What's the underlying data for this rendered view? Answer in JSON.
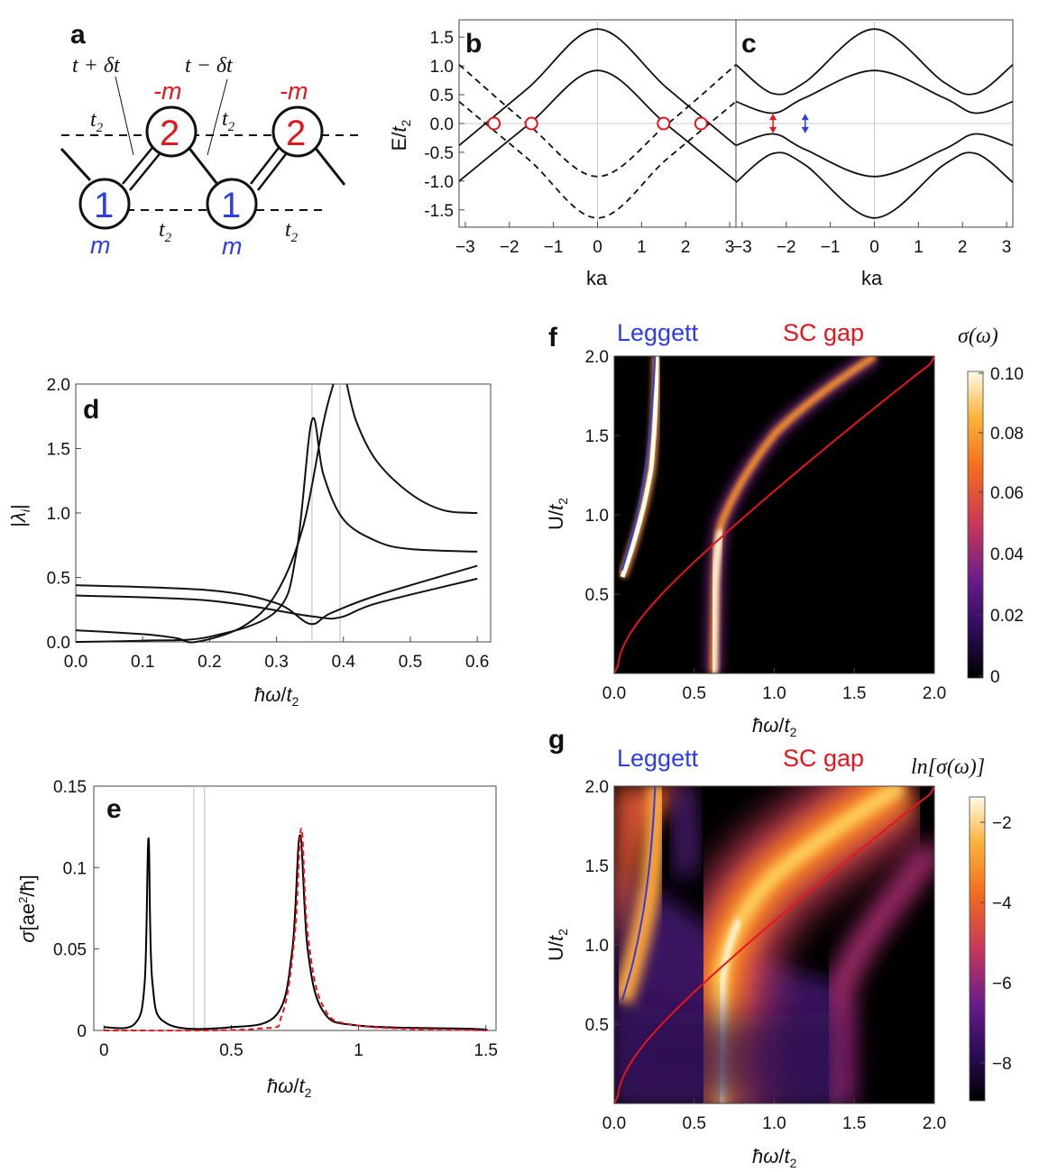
{
  "panel_labels": {
    "a": "a",
    "b": "b",
    "c": "c",
    "d": "d",
    "e": "e",
    "f": "f",
    "g": "g"
  },
  "panel_a": {
    "hop_plus": "t + δt",
    "hop_minus": "t − δt",
    "t2": "t",
    "t2_sub": "2",
    "site1": "1",
    "site2": "2",
    "mass_pos": "m",
    "mass_neg": "-m",
    "colors": {
      "site1": "#2b3ee6",
      "site2": "#e8141c"
    }
  },
  "chart_data": [
    {
      "id": "b",
      "type": "line",
      "xlabel": "ka",
      "ylabel": "E/t2",
      "xlim": [
        -3.14159,
        3.14159
      ],
      "ylim": [
        -1.8,
        1.8
      ],
      "xticks": [
        "−3",
        "−2",
        "−1",
        "0",
        "1",
        "2",
        "3"
      ],
      "yticks": [
        "1.5",
        "1.0",
        "0.5",
        "0.0",
        "-0.5",
        "-1.0",
        "-1.5"
      ],
      "series": [
        {
          "style": "solid",
          "points": [
            [
              -3.14,
              -0.38
            ],
            [
              -1.57,
              0.62
            ],
            [
              0,
              1.64
            ],
            [
              1.57,
              0.62
            ],
            [
              3.14,
              -0.38
            ]
          ]
        },
        {
          "style": "solid",
          "points": [
            [
              -3.14,
              -1.0
            ],
            [
              -1.57,
              -0.02
            ],
            [
              0,
              0.92
            ],
            [
              1.57,
              -0.02
            ],
            [
              3.14,
              -1.0
            ]
          ]
        },
        {
          "style": "dashed",
          "points": [
            [
              -3.14,
              1.02
            ],
            [
              -1.57,
              -0.02
            ],
            [
              0,
              -0.92
            ],
            [
              1.57,
              -0.02
            ],
            [
              3.14,
              1.02
            ]
          ]
        },
        {
          "style": "dashed",
          "points": [
            [
              -3.14,
              0.38
            ],
            [
              -1.57,
              -0.62
            ],
            [
              0,
              -1.64
            ],
            [
              1.57,
              -0.62
            ],
            [
              3.14,
              0.38
            ]
          ]
        }
      ],
      "markers": [
        [
          -2.35,
          0.0
        ],
        [
          -1.5,
          0.0
        ],
        [
          1.5,
          0.0
        ],
        [
          2.35,
          0.0
        ]
      ]
    },
    {
      "id": "c",
      "type": "line",
      "xlabel": "ka",
      "xlim": [
        -3.14159,
        3.14159
      ],
      "ylim": [
        -1.8,
        1.8
      ],
      "xticks": [
        "−3",
        "−2",
        "−1",
        "0",
        "1",
        "2",
        "3"
      ],
      "series": [
        {
          "style": "solid",
          "points": [
            [
              -3.14,
              1.02
            ],
            [
              -2.3,
              0.52
            ],
            [
              -1.57,
              0.72
            ],
            [
              0,
              1.64
            ],
            [
              1.57,
              0.72
            ],
            [
              2.3,
              0.52
            ],
            [
              3.14,
              1.02
            ]
          ]
        },
        {
          "style": "solid",
          "points": [
            [
              -3.14,
              0.38
            ],
            [
              -2.3,
              0.18
            ],
            [
              -1.57,
              0.45
            ],
            [
              0,
              0.92
            ],
            [
              1.57,
              0.45
            ],
            [
              2.3,
              0.18
            ],
            [
              3.14,
              0.38
            ]
          ]
        },
        {
          "style": "solid",
          "points": [
            [
              -3.14,
              -0.38
            ],
            [
              -2.3,
              -0.18
            ],
            [
              -1.57,
              -0.45
            ],
            [
              0,
              -0.92
            ],
            [
              1.57,
              -0.45
            ],
            [
              2.3,
              -0.18
            ],
            [
              3.14,
              -0.38
            ]
          ]
        },
        {
          "style": "solid",
          "points": [
            [
              -3.14,
              -1.02
            ],
            [
              -2.3,
              -0.52
            ],
            [
              -1.57,
              -0.72
            ],
            [
              0,
              -1.64
            ],
            [
              1.57,
              -0.72
            ],
            [
              2.3,
              -0.52
            ],
            [
              3.14,
              -1.02
            ]
          ]
        }
      ],
      "gap_arrows": [
        {
          "k": -2.3,
          "color": "#e8141c"
        },
        {
          "k": -1.57,
          "color": "#2b3ee6"
        }
      ]
    },
    {
      "id": "d",
      "type": "line",
      "xlabel": "ħω/t2",
      "ylabel": "|λi|",
      "xlim": [
        0,
        0.62
      ],
      "ylim": [
        0,
        2.0
      ],
      "xticks": [
        "0.0",
        "0.1",
        "0.2",
        "0.3",
        "0.4",
        "0.5",
        "0.6"
      ],
      "yticks": [
        "2.0",
        "1.5",
        "1.0",
        "0.5",
        "0.0"
      ],
      "vlines": [
        0.353,
        0.395
      ],
      "series": [
        {
          "points": [
            [
              0,
              0.09
            ],
            [
              0.1,
              0.06
            ],
            [
              0.15,
              0.03
            ],
            [
              0.18,
              0.0
            ],
            [
              0.25,
              0.12
            ],
            [
              0.3,
              0.38
            ],
            [
              0.34,
              0.9
            ],
            [
              0.37,
              1.7
            ],
            [
              0.385,
              2.0
            ]
          ]
        },
        {
          "points": [
            [
              0.405,
              2.0
            ],
            [
              0.42,
              1.7
            ],
            [
              0.45,
              1.4
            ],
            [
              0.5,
              1.15
            ],
            [
              0.55,
              1.02
            ],
            [
              0.6,
              1.0
            ]
          ]
        },
        {
          "points": [
            [
              0,
              0.0
            ],
            [
              0.1,
              0.01
            ],
            [
              0.2,
              0.04
            ],
            [
              0.3,
              0.24
            ],
            [
              0.33,
              0.7
            ],
            [
              0.353,
              1.72
            ],
            [
              0.37,
              1.3
            ],
            [
              0.4,
              0.95
            ],
            [
              0.45,
              0.78
            ],
            [
              0.5,
              0.72
            ],
            [
              0.6,
              0.7
            ]
          ]
        },
        {
          "points": [
            [
              0,
              0.44
            ],
            [
              0.2,
              0.4
            ],
            [
              0.3,
              0.3
            ],
            [
              0.35,
              0.14
            ],
            [
              0.38,
              0.22
            ],
            [
              0.45,
              0.36
            ],
            [
              0.6,
              0.59
            ]
          ]
        },
        {
          "points": [
            [
              0,
              0.36
            ],
            [
              0.2,
              0.32
            ],
            [
              0.35,
              0.2
            ],
            [
              0.395,
              0.19
            ],
            [
              0.45,
              0.3
            ],
            [
              0.6,
              0.49
            ]
          ]
        }
      ]
    },
    {
      "id": "e",
      "type": "line",
      "xlabel": "ħω/t2",
      "ylabel": "σ[ae²/ħ]",
      "xlim": [
        -0.04,
        1.54
      ],
      "ylim": [
        0,
        0.15
      ],
      "xticks": [
        "0",
        "0.5",
        "1",
        "1.5"
      ],
      "yticks": [
        "0.15",
        "0.1",
        "0.05",
        "0"
      ],
      "vlines": [
        0.353,
        0.395
      ],
      "series": [
        {
          "name": "",
          "color": "#000000",
          "style": "solid",
          "points": [
            [
              0,
              0.002
            ],
            [
              0.12,
              0.004
            ],
            [
              0.16,
              0.03
            ],
            [
              0.175,
              0.118
            ],
            [
              0.19,
              0.03
            ],
            [
              0.25,
              0.004
            ],
            [
              0.5,
              0.002
            ],
            [
              0.68,
              0.01
            ],
            [
              0.74,
              0.05
            ],
            [
              0.77,
              0.12
            ],
            [
              0.8,
              0.05
            ],
            [
              0.86,
              0.012
            ],
            [
              1.0,
              0.003
            ],
            [
              1.45,
              0.001
            ],
            [
              1.5,
              0.0
            ]
          ]
        },
        {
          "name": "",
          "color": "#e8141c",
          "style": "dashed",
          "points": [
            [
              0,
              0.0
            ],
            [
              0.6,
              0.001
            ],
            [
              0.7,
              0.01
            ],
            [
              0.75,
              0.06
            ],
            [
              0.775,
              0.124
            ],
            [
              0.8,
              0.06
            ],
            [
              0.86,
              0.015
            ],
            [
              1.0,
              0.003
            ],
            [
              1.5,
              0.0
            ]
          ]
        }
      ]
    },
    {
      "id": "f",
      "type": "heatmap",
      "xlabel": "ħω/t2",
      "ylabel": "U/t2",
      "xlim": [
        0,
        2.0
      ],
      "ylim": [
        0,
        2.0
      ],
      "xticks": [
        "0.0",
        "0.5",
        "1.0",
        "1.5",
        "2.0"
      ],
      "yticks": [
        "2.0",
        "1.5",
        "1.0",
        "0.5"
      ],
      "colorbar_title": "σ(ω)",
      "colorbar_ticks": [
        "0.10",
        "0.08",
        "0.06",
        "0.04",
        "0.02",
        "0"
      ],
      "legend": [
        "Leggett",
        "SC gap"
      ]
    },
    {
      "id": "g",
      "type": "heatmap",
      "xlabel": "ħω/t2",
      "ylabel": "U/t2",
      "xlim": [
        0,
        2.0
      ],
      "ylim": [
        0,
        2.0
      ],
      "xticks": [
        "0.0",
        "0.5",
        "1.0",
        "1.5",
        "2.0"
      ],
      "yticks": [
        "2.0",
        "1.5",
        "1.0",
        "0.5"
      ],
      "colorbar_title": "ln[σ(ω)]",
      "colorbar_ticks": [
        "−2",
        "−4",
        "−6",
        "−8"
      ],
      "legend": [
        "Leggett",
        "SC gap"
      ]
    }
  ],
  "colors": {
    "leggett": "#2b3ee6",
    "scgap": "#e8141c"
  }
}
